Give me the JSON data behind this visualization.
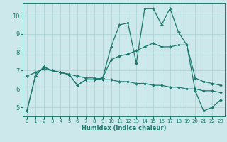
{
  "title": "",
  "xlabel": "Humidex (Indice chaleur)",
  "ylabel": "",
  "bg_color": "#cde8ea",
  "grid_color": "#b0d5d8",
  "line_color": "#1a7a6e",
  "text_color": "#1a7a6e",
  "xlim": [
    -0.5,
    23.5
  ],
  "ylim": [
    4.5,
    10.7
  ],
  "yticks": [
    5,
    6,
    7,
    8,
    9,
    10
  ],
  "xticks": [
    0,
    1,
    2,
    3,
    4,
    5,
    6,
    7,
    8,
    9,
    10,
    11,
    12,
    13,
    14,
    15,
    16,
    17,
    18,
    19,
    20,
    21,
    22,
    23
  ],
  "series": [
    [
      4.8,
      6.7,
      7.2,
      7.0,
      6.9,
      6.8,
      6.2,
      6.5,
      6.5,
      6.6,
      8.3,
      9.5,
      9.6,
      7.4,
      10.4,
      10.4,
      9.5,
      10.4,
      9.1,
      8.4,
      5.9,
      4.8,
      5.0,
      5.4
    ],
    [
      4.8,
      6.7,
      7.2,
      7.0,
      6.9,
      6.8,
      6.2,
      6.5,
      6.5,
      6.6,
      7.6,
      7.8,
      7.9,
      8.1,
      8.3,
      8.5,
      8.3,
      8.3,
      8.4,
      8.4,
      6.6,
      6.4,
      6.3,
      6.2
    ],
    [
      6.7,
      6.9,
      7.1,
      7.0,
      6.9,
      6.8,
      6.7,
      6.6,
      6.6,
      6.5,
      6.5,
      6.4,
      6.4,
      6.3,
      6.3,
      6.2,
      6.2,
      6.1,
      6.1,
      6.0,
      6.0,
      5.9,
      5.9,
      5.8
    ]
  ]
}
